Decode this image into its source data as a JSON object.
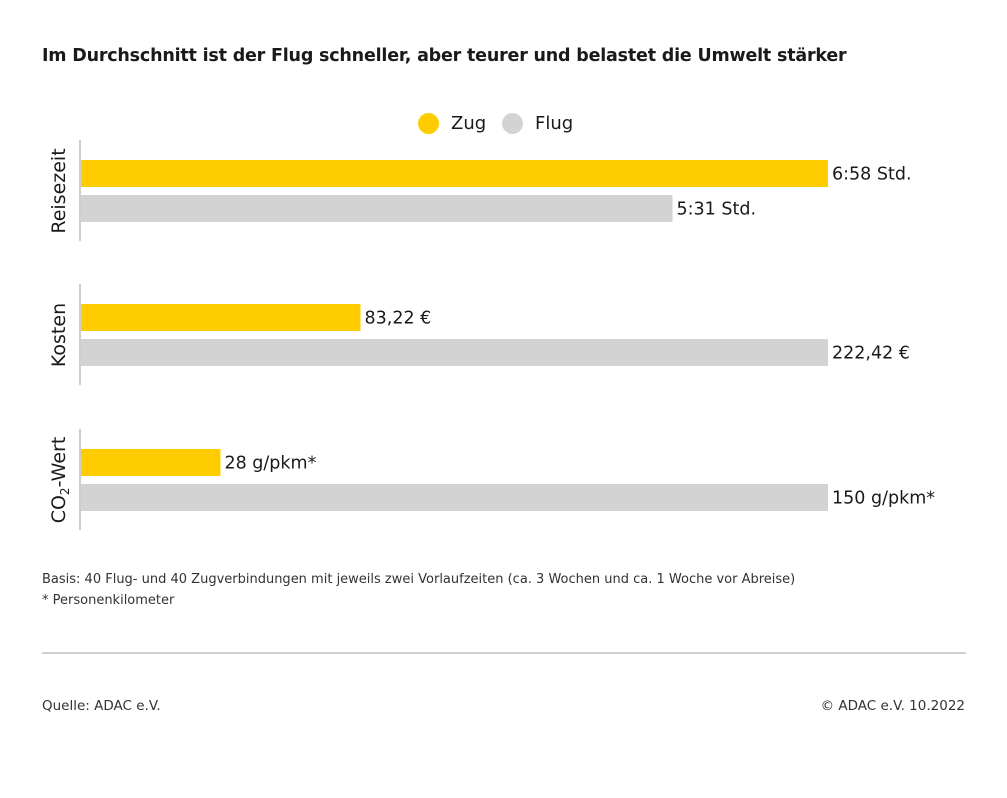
{
  "title": "Im Durchschnitt ist der Flug schneller, aber teurer und belastet die Umwelt stärker",
  "legend": [
    {
      "name": "Zug",
      "color": "#FFCC00"
    },
    {
      "name": "Flug",
      "color": "#D3D3D3"
    }
  ],
  "chart_data": {
    "type": "bar",
    "orientation": "horizontal",
    "grid": false,
    "legend_position": "top-center",
    "groups": [
      {
        "label": "Reisezeit",
        "label_parts": [
          "Reisezeit"
        ],
        "bars": [
          {
            "series": "Zug",
            "value": 418,
            "label": "6:58 Std."
          },
          {
            "series": "Flug",
            "value": 331,
            "label": "5:31 Std."
          }
        ]
      },
      {
        "label": "Kosten",
        "label_parts": [
          "Kosten"
        ],
        "bars": [
          {
            "series": "Zug",
            "value": 83.22,
            "label": "83,22 €"
          },
          {
            "series": "Flug",
            "value": 222.42,
            "label": "222,42 €"
          }
        ]
      },
      {
        "label": "CO2-Wert",
        "label_parts": [
          "CO",
          "2",
          "-Wert"
        ],
        "bars": [
          {
            "series": "Zug",
            "value": 28,
            "label": "28 g/pkm*"
          },
          {
            "series": "Flug",
            "value": 150,
            "label": "150 g/pkm*"
          }
        ]
      }
    ]
  },
  "footnotes": [
    "Basis: 40 Flug- und 40 Zugverbindungen mit jeweils zwei Vorlaufzeiten (ca. 3 Wochen und ca. 1 Woche vor Abreise)",
    "* Personenkilometer"
  ],
  "source": "Quelle: ADAC e.V.",
  "copyright": "© ADAC e.V. 10.2022"
}
